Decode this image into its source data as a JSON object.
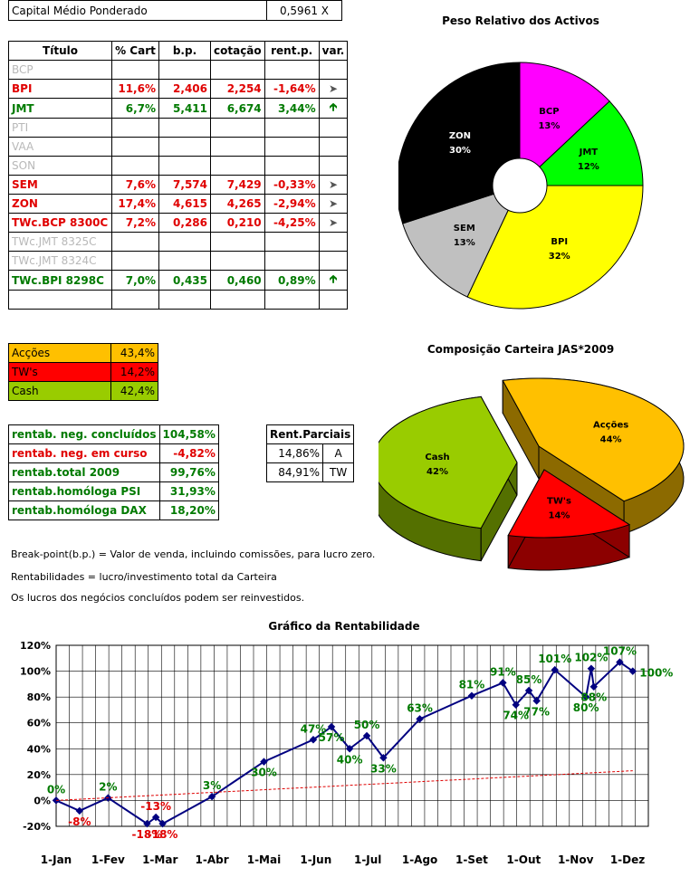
{
  "capital": {
    "label": "Capital Médio Ponderado",
    "value": "0,5961",
    "unit": "X"
  },
  "portfolio": {
    "headers": [
      "Título",
      "% Cart",
      "b.p.",
      "cotação",
      "rent.p.",
      "var."
    ],
    "rows": [
      {
        "name": "BCP",
        "cart": "",
        "bp": "",
        "cot": "",
        "rent": "",
        "var": "",
        "style": "grey"
      },
      {
        "name": "BPI",
        "cart": "11,6%",
        "bp": "2,406",
        "cot": "2,254",
        "rent": "-1,64%",
        "var": "right",
        "style": "red"
      },
      {
        "name": "JMT",
        "cart": "6,7%",
        "bp": "5,411",
        "cot": "6,674",
        "rent": "3,44%",
        "var": "up",
        "style": "green"
      },
      {
        "name": "PTI",
        "cart": "",
        "bp": "",
        "cot": "",
        "rent": "",
        "var": "",
        "style": "grey"
      },
      {
        "name": "VAA",
        "cart": "",
        "bp": "",
        "cot": "",
        "rent": "",
        "var": "",
        "style": "grey"
      },
      {
        "name": "SON",
        "cart": "",
        "bp": "",
        "cot": "",
        "rent": "",
        "var": "",
        "style": "grey"
      },
      {
        "name": "SEM",
        "cart": "7,6%",
        "bp": "7,574",
        "cot": "7,429",
        "rent": "-0,33%",
        "var": "right",
        "style": "red"
      },
      {
        "name": "ZON",
        "cart": "17,4%",
        "bp": "4,615",
        "cot": "4,265",
        "rent": "-2,94%",
        "var": "right",
        "style": "red"
      },
      {
        "name": "TWc.BCP 8300C",
        "cart": "7,2%",
        "bp": "0,286",
        "cot": "0,210",
        "rent": "-4,25%",
        "var": "right",
        "style": "red"
      },
      {
        "name": "TWc.JMT 8325C",
        "cart": "",
        "bp": "",
        "cot": "",
        "rent": "",
        "var": "",
        "style": "grey"
      },
      {
        "name": "TWc.JMT 8324C",
        "cart": "",
        "bp": "",
        "cot": "",
        "rent": "",
        "var": "",
        "style": "grey"
      },
      {
        "name": "TWc.BPI 8298C",
        "cart": "7,0%",
        "bp": "0,435",
        "cot": "0,460",
        "rent": "0,89%",
        "var": "up",
        "style": "green"
      },
      {
        "name": "",
        "cart": "",
        "bp": "",
        "cot": "",
        "rent": "",
        "var": "",
        "style": "grey"
      }
    ]
  },
  "composition": [
    {
      "label": "Acções",
      "value": "43,4%",
      "color": "#ffc000"
    },
    {
      "label": "TW's",
      "value": "14,2%",
      "color": "#ff0000"
    },
    {
      "label": "Cash",
      "value": "42,4%",
      "color": "#99cc00"
    }
  ],
  "returns": [
    {
      "label": "rentab. neg. concluídos",
      "value": "104,58%",
      "style": "green"
    },
    {
      "label": "rentab. neg. em curso",
      "value": "-4,82%",
      "style": "red"
    },
    {
      "label": "rentab.total 2009",
      "value": "99,76%",
      "style": "green"
    },
    {
      "label": "rentab.homóloga PSI",
      "value": "31,93%",
      "style": "green"
    },
    {
      "label": "rentab.homóloga DAX",
      "value": "18,20%",
      "style": "green"
    }
  ],
  "partial": {
    "header": "Rent.Parciais",
    "rows": [
      {
        "value": "14,86%",
        "tag": "A"
      },
      {
        "value": "84,91%",
        "tag": "TW"
      }
    ]
  },
  "notes": [
    "Break-point(b.p.) = Valor de venda, incluindo comissões, para lucro zero.",
    "Rentabilidades = lucro/investimento total da Carteira",
    "Os lucros dos negócios concluídos podem ser reinvestidos."
  ],
  "chart_data": [
    {
      "type": "pie",
      "title": "Peso Relativo dos Activos",
      "slices": [
        {
          "label": "BCP",
          "value": 13,
          "color": "#ff00ff"
        },
        {
          "label": "JMT",
          "value": 12,
          "color": "#00ff00"
        },
        {
          "label": "BPI",
          "value": 32,
          "color": "#ffff00"
        },
        {
          "label": "SEM",
          "value": 13,
          "color": "#c0c0c0"
        },
        {
          "label": "ZON",
          "value": 30,
          "color": "#000000"
        }
      ],
      "donut": true
    },
    {
      "type": "pie",
      "title": "Composição Carteira JAS*2009",
      "slices": [
        {
          "label": "Acções",
          "value": 44,
          "color": "#ffc000"
        },
        {
          "label": "TW's",
          "value": 14,
          "color": "#ff0000"
        },
        {
          "label": "Cash",
          "value": 42,
          "color": "#99cc00"
        }
      ],
      "three_d": true
    },
    {
      "type": "line",
      "title": "Gráfico da Rentabilidade",
      "x_ticks": [
        "1-Jan",
        "1-Fev",
        "1-Mar",
        "1-Abr",
        "1-Mai",
        "1-Jun",
        "1-Jul",
        "1-Ago",
        "1-Set",
        "1-Out",
        "1-Nov",
        "1-Dez"
      ],
      "y_ticks": [
        "-20%",
        "0%",
        "20%",
        "40%",
        "60%",
        "80%",
        "100%",
        "120%"
      ],
      "ylim": [
        -20,
        120
      ],
      "grid": true,
      "series": [
        {
          "color": "#000080",
          "points": [
            {
              "month": 0,
              "y": 0,
              "label": "0%"
            },
            {
              "month": 0.45,
              "y": -8,
              "label": "-8%"
            },
            {
              "month": 1.0,
              "y": 2,
              "label": "2%"
            },
            {
              "month": 1.75,
              "y": -18,
              "label": "-18%"
            },
            {
              "month": 1.92,
              "y": -13,
              "label": "-13%"
            },
            {
              "month": 2.05,
              "y": -18,
              "label": "-18%"
            },
            {
              "month": 3.0,
              "y": 3,
              "label": "3%"
            },
            {
              "month": 4.0,
              "y": 30,
              "label": "30%"
            },
            {
              "month": 4.95,
              "y": 47,
              "label": "47%"
            },
            {
              "month": 5.3,
              "y": 57,
              "label": "57%"
            },
            {
              "month": 5.65,
              "y": 40,
              "label": "40%"
            },
            {
              "month": 5.98,
              "y": 50,
              "label": "50%"
            },
            {
              "month": 6.3,
              "y": 33,
              "label": "33%"
            },
            {
              "month": 7.0,
              "y": 63,
              "label": "63%"
            },
            {
              "month": 8.0,
              "y": 81,
              "label": "81%"
            },
            {
              "month": 8.6,
              "y": 91,
              "label": "91%"
            },
            {
              "month": 8.85,
              "y": 74,
              "label": "74%"
            },
            {
              "month": 9.1,
              "y": 85,
              "label": "85%"
            },
            {
              "month": 9.25,
              "y": 77,
              "label": "77%"
            },
            {
              "month": 9.6,
              "y": 101,
              "label": "101%"
            },
            {
              "month": 10.2,
              "y": 80,
              "label": "80%"
            },
            {
              "month": 10.3,
              "y": 102,
              "label": "102%"
            },
            {
              "month": 10.35,
              "y": 88,
              "label": "88%"
            },
            {
              "month": 10.85,
              "y": 107,
              "label": "107%"
            },
            {
              "month": 11.1,
              "y": 100,
              "label": "100%"
            }
          ]
        },
        {
          "color": "#e00000",
          "dashed": true,
          "points": [
            {
              "month": 0,
              "y": 0
            },
            {
              "month": 11.1,
              "y": 23
            }
          ]
        }
      ]
    }
  ]
}
